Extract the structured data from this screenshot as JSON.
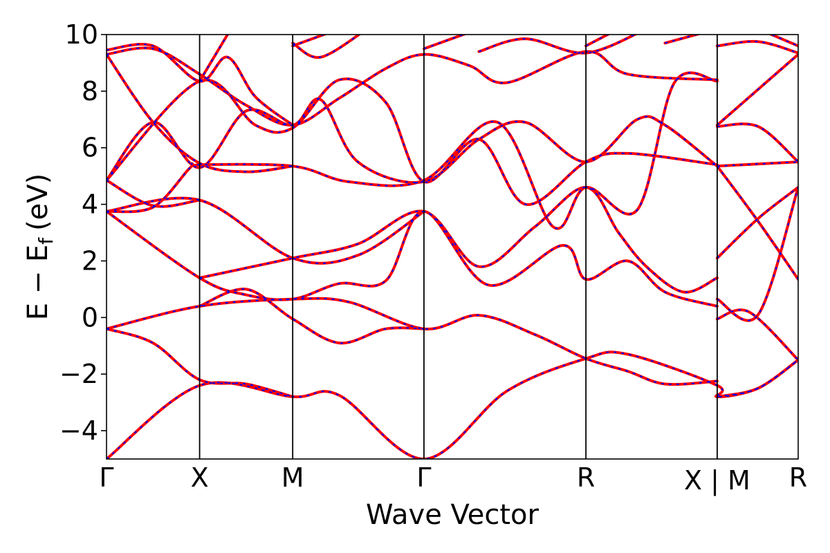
{
  "chart_data": {
    "type": "line",
    "title": "",
    "xlabel": "Wave Vector",
    "ylabel": "E − E_f (eV)",
    "ylabel_parts": {
      "main": "E − E",
      "subscript": "f",
      "units": "(eV)"
    },
    "ylim": [
      -5,
      10
    ],
    "yticks": [
      -4,
      -2,
      0,
      2,
      4,
      6,
      8,
      10
    ],
    "xlim": [
      0,
      7.43
    ],
    "kpoints": [
      {
        "label": "Γ",
        "x": 0
      },
      {
        "label": "X",
        "x": 1.0
      },
      {
        "label": "M",
        "x": 2.0
      },
      {
        "label": "Γ",
        "x": 3.41
      },
      {
        "label": "R",
        "x": 5.15
      },
      {
        "label": "X | M",
        "x": 6.56
      },
      {
        "label": "R",
        "x": 7.43
      }
    ],
    "grid": false,
    "legend": "none",
    "colors": {
      "series_a": "#ff0000",
      "series_b": "#0000ff"
    },
    "series": [
      {
        "color": "#ff0000",
        "style": "solid",
        "bands": [
          [
            [
              0,
              -5.0
            ],
            [
              1.0,
              -2.4
            ],
            [
              2.0,
              -2.8
            ],
            [
              2.5,
              -2.75
            ],
            [
              3.41,
              -5.0
            ],
            [
              4.3,
              -2.6
            ],
            [
              5.15,
              -1.45
            ],
            [
              5.6,
              -1.3
            ],
            [
              6.56,
              -2.4
            ],
            [
              6.56,
              -2.8
            ],
            [
              7.0,
              -2.5
            ],
            [
              7.43,
              -1.5
            ]
          ],
          [
            [
              0,
              -0.4
            ],
            [
              0.5,
              -0.9
            ],
            [
              1.0,
              -2.2
            ],
            [
              1.5,
              -2.35
            ],
            [
              2.0,
              -2.8
            ]
          ],
          [
            [
              0,
              -0.4
            ],
            [
              1.0,
              0.4
            ],
            [
              2.0,
              0.65
            ],
            [
              2.6,
              0.55
            ],
            [
              3.41,
              -0.4
            ],
            [
              4.0,
              0.08
            ],
            [
              4.6,
              -0.6
            ],
            [
              5.15,
              -1.45
            ],
            [
              5.6,
              -1.9
            ],
            [
              6.0,
              -2.35
            ],
            [
              6.56,
              -2.25
            ]
          ],
          [
            [
              1.0,
              0.4
            ],
            [
              1.5,
              1.0
            ],
            [
              2.0,
              -0.05
            ],
            [
              2.5,
              -0.9
            ],
            [
              3.0,
              -0.4
            ],
            [
              3.41,
              -0.4
            ]
          ],
          [
            [
              0,
              3.75
            ],
            [
              1.0,
              1.4
            ],
            [
              1.5,
              0.8
            ],
            [
              2.0,
              0.65
            ],
            [
              2.5,
              1.2
            ],
            [
              3.0,
              1.3
            ],
            [
              3.41,
              3.75
            ],
            [
              4.1,
              1.15
            ],
            [
              4.9,
              2.55
            ],
            [
              5.15,
              1.35
            ],
            [
              5.6,
              2.0
            ],
            [
              6.0,
              0.9
            ],
            [
              6.56,
              0.4
            ]
          ],
          [
            [
              1.0,
              1.4
            ],
            [
              2.0,
              2.1
            ],
            [
              2.7,
              2.6
            ],
            [
              3.41,
              3.75
            ],
            [
              4.0,
              1.8
            ],
            [
              4.6,
              3.2
            ],
            [
              5.15,
              4.6
            ],
            [
              5.5,
              3.0
            ],
            [
              5.8,
              1.8
            ],
            [
              6.2,
              0.9
            ],
            [
              6.56,
              1.4
            ]
          ],
          [
            [
              0,
              3.75
            ],
            [
              1.0,
              4.15
            ],
            [
              2.0,
              2.1
            ],
            [
              2.7,
              2.2
            ],
            [
              3.41,
              3.75
            ]
          ],
          [
            [
              0,
              3.75
            ],
            [
              0.5,
              3.9
            ],
            [
              0.9,
              5.3
            ],
            [
              1.0,
              5.4
            ],
            [
              2.0,
              5.35
            ],
            [
              2.6,
              4.8
            ],
            [
              3.41,
              4.85
            ],
            [
              4.2,
              6.9
            ],
            [
              4.8,
              3.2
            ],
            [
              5.15,
              4.6
            ],
            [
              5.7,
              3.8
            ],
            [
              6.1,
              8.3
            ],
            [
              6.56,
              8.35
            ]
          ],
          [
            [
              0,
              4.85
            ],
            [
              0.5,
              3.95
            ],
            [
              1.0,
              4.15
            ]
          ],
          [
            [
              0,
              4.85
            ],
            [
              1.0,
              8.35
            ],
            [
              1.6,
              6.8
            ],
            [
              2.0,
              6.7
            ],
            [
              2.5,
              8.4
            ],
            [
              3.0,
              7.6
            ],
            [
              3.41,
              4.8
            ],
            [
              4.0,
              6.3
            ],
            [
              4.5,
              4.0
            ],
            [
              5.15,
              5.5
            ],
            [
              5.6,
              5.8
            ],
            [
              6.56,
              5.4
            ]
          ],
          [
            [
              0,
              4.85
            ],
            [
              0.5,
              6.9
            ],
            [
              1.0,
              5.3
            ],
            [
              1.5,
              7.3
            ],
            [
              2.0,
              6.8
            ],
            [
              2.3,
              7.7
            ],
            [
              2.7,
              5.5
            ],
            [
              3.41,
              4.8
            ],
            [
              4.0,
              6.3
            ],
            [
              4.5,
              6.9
            ],
            [
              5.15,
              5.5
            ],
            [
              5.7,
              7.0
            ],
            [
              6.0,
              6.8
            ],
            [
              6.56,
              5.35
            ]
          ],
          [
            [
              0,
              9.3
            ],
            [
              0.5,
              6.9
            ],
            [
              1.0,
              5.45
            ],
            [
              1.5,
              5.15
            ],
            [
              2.0,
              5.35
            ]
          ],
          [
            [
              0,
              9.3
            ],
            [
              0.5,
              9.5
            ],
            [
              1.0,
              8.6
            ],
            [
              1.5,
              7.5
            ],
            [
              2.0,
              6.8
            ],
            [
              2.5,
              7.75
            ],
            [
              3.0,
              8.8
            ],
            [
              3.41,
              9.3
            ],
            [
              3.9,
              8.9
            ],
            [
              4.3,
              8.3
            ],
            [
              5.15,
              9.4
            ],
            [
              5.6,
              8.6
            ],
            [
              6.56,
              8.4
            ]
          ],
          [
            [
              0,
              9.45
            ],
            [
              0.5,
              9.6
            ],
            [
              1.0,
              8.35
            ],
            [
              1.3,
              9.2
            ],
            [
              1.6,
              7.8
            ],
            [
              2.0,
              6.8
            ]
          ],
          [
            [
              1.0,
              8.35
            ],
            [
              1.3,
              10.0
            ]
          ],
          [
            [
              2.0,
              9.7
            ],
            [
              2.3,
              9.2
            ],
            [
              2.8,
              10.2
            ]
          ],
          [
            [
              2.0,
              9.6
            ],
            [
              2.5,
              10.2
            ]
          ],
          [
            [
              3.41,
              9.5
            ],
            [
              4.0,
              10.2
            ]
          ],
          [
            [
              4.0,
              9.4
            ],
            [
              4.5,
              9.85
            ],
            [
              5.15,
              9.35
            ],
            [
              5.8,
              10.2
            ]
          ],
          [
            [
              5.15,
              9.6
            ],
            [
              5.5,
              10.2
            ]
          ],
          [
            [
              6.0,
              9.7
            ],
            [
              6.56,
              10.2
            ]
          ],
          [
            [
              6.56,
              -2.8
            ],
            [
              7.0,
              -2.5
            ],
            [
              7.43,
              -1.5
            ]
          ],
          [
            [
              6.56,
              -0.05
            ],
            [
              6.9,
              0.2
            ],
            [
              7.43,
              -1.5
            ]
          ],
          [
            [
              6.56,
              0.65
            ],
            [
              7.0,
              0.1
            ],
            [
              7.43,
              4.6
            ]
          ],
          [
            [
              6.56,
              2.1
            ],
            [
              7.0,
              3.5
            ],
            [
              7.43,
              4.6
            ]
          ],
          [
            [
              6.56,
              5.35
            ],
            [
              7.0,
              3.4
            ],
            [
              7.43,
              1.35
            ]
          ],
          [
            [
              6.56,
              5.35
            ],
            [
              7.43,
              5.5
            ]
          ],
          [
            [
              6.56,
              6.75
            ],
            [
              7.0,
              6.75
            ],
            [
              7.43,
              5.5
            ]
          ],
          [
            [
              6.56,
              6.8
            ],
            [
              7.43,
              9.3
            ]
          ],
          [
            [
              6.56,
              9.6
            ],
            [
              7.0,
              9.75
            ],
            [
              7.43,
              9.35
            ]
          ],
          [
            [
              7.0,
              10.2
            ],
            [
              7.43,
              9.6
            ]
          ]
        ]
      },
      {
        "color": "#0000ff",
        "style": "dashed",
        "same_as": 0
      }
    ]
  }
}
